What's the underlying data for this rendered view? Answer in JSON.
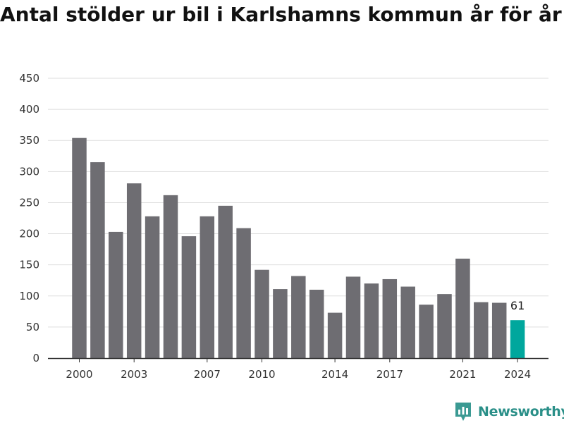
{
  "chart_data": {
    "type": "bar",
    "title": "Antal stölder ur bil i Karlshamns kommun år för år",
    "xlabel": "",
    "ylabel": "",
    "x": [
      2000,
      2001,
      2002,
      2003,
      2004,
      2005,
      2006,
      2007,
      2008,
      2009,
      2010,
      2011,
      2012,
      2013,
      2014,
      2015,
      2016,
      2017,
      2018,
      2019,
      2020,
      2021,
      2022,
      2023,
      2024
    ],
    "values": [
      354,
      315,
      203,
      281,
      228,
      262,
      196,
      228,
      245,
      209,
      142,
      111,
      132,
      110,
      73,
      131,
      120,
      127,
      115,
      86,
      103,
      160,
      90,
      89,
      61
    ],
    "x_tick_labels": [
      "2000",
      "2003",
      "2007",
      "2010",
      "2014",
      "2017",
      "2021",
      "2024"
    ],
    "x_tick_values": [
      2000,
      2003,
      2007,
      2010,
      2014,
      2017,
      2021,
      2024
    ],
    "y_ticks": [
      0,
      50,
      100,
      150,
      200,
      250,
      300,
      350,
      400,
      450
    ],
    "ylim": [
      0,
      450
    ],
    "grid": true,
    "data_labels": [
      {
        "x": 2024,
        "text": "61"
      }
    ],
    "colors": {
      "bar": "#6e6d72",
      "highlight": "#00a79d",
      "grid": "#dddddd",
      "axis": "#333333"
    },
    "highlight_x": 2024
  },
  "brand": {
    "name": "Newsworthy",
    "icon": "newsworthy-logo-icon"
  }
}
